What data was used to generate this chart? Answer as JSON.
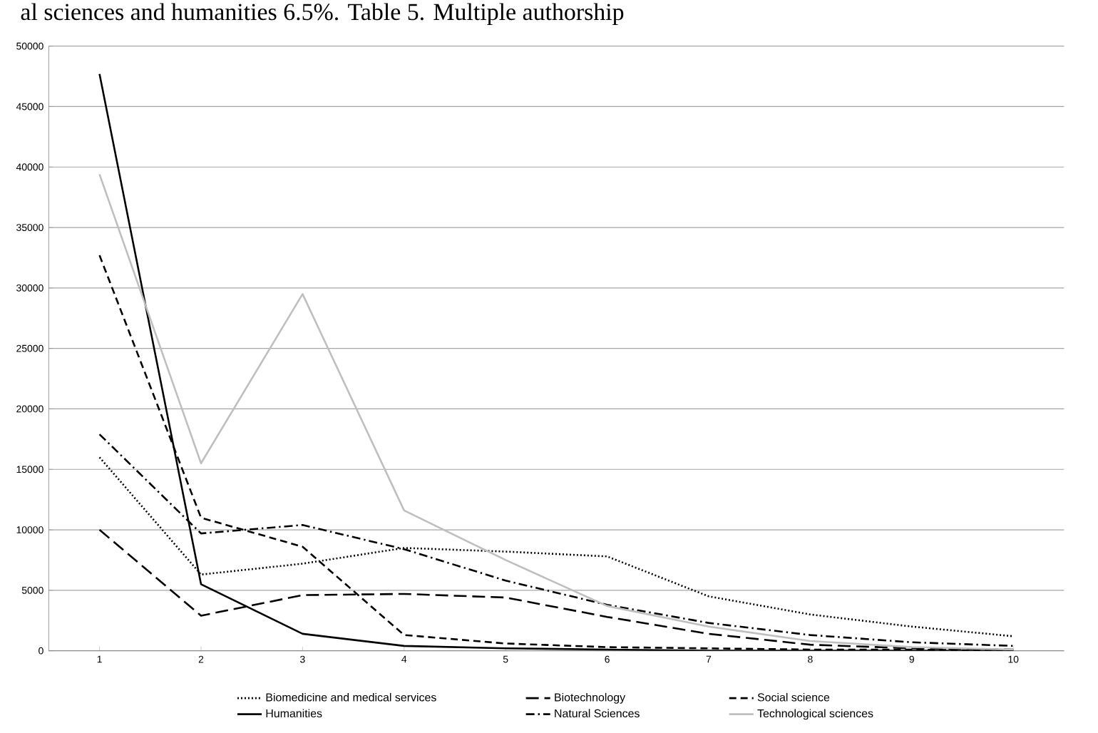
{
  "chart_data": {
    "type": "line",
    "annotations": [
      "al sciences and humanities 6.5%. Table 5. Multiple authorship"
    ],
    "categories": [
      "1",
      "2",
      "3",
      "4",
      "5",
      "6",
      "7",
      "8",
      "9",
      "10"
    ],
    "series": [
      {
        "name": "Biomedicine and medical services",
        "color": "#000000",
        "line_style": "dotted",
        "values": [
          16000,
          6300,
          7200,
          8500,
          8200,
          7800,
          4500,
          3000,
          2000,
          1200
        ]
      },
      {
        "name": "Biotechnology",
        "color": "#000000",
        "line_style": "long dashed",
        "values": [
          10000,
          2900,
          4600,
          4700,
          4400,
          2800,
          1400,
          500,
          200,
          100
        ]
      },
      {
        "name": "Social science",
        "color": "#000000",
        "line_style": "dashed",
        "values": [
          32700,
          11000,
          8600,
          1300,
          600,
          300,
          200,
          100,
          100,
          0
        ]
      },
      {
        "name": "Humanities",
        "color": "#000000",
        "line_style": "solid",
        "values": [
          47700,
          5500,
          1400,
          400,
          200,
          100,
          0,
          0,
          0,
          0
        ]
      },
      {
        "name": "Natural Sciences",
        "color": "#000000",
        "line_style": "dash-dot",
        "values": [
          17900,
          9700,
          10400,
          8400,
          5800,
          3800,
          2300,
          1300,
          700,
          400
        ]
      },
      {
        "name": "Technological sciences",
        "color": "#bfbfbf",
        "line_style": "solid",
        "values": [
          39400,
          15500,
          29500,
          11600,
          7500,
          3700,
          2000,
          800,
          300,
          100
        ]
      }
    ],
    "ylim": [
      0,
      50000
    ],
    "yticks": [
      0,
      5000,
      10000,
      15000,
      20000,
      25000,
      30000,
      35000,
      40000,
      45000,
      50000
    ],
    "grid": "y",
    "legend": "bottom",
    "marker": "none"
  }
}
